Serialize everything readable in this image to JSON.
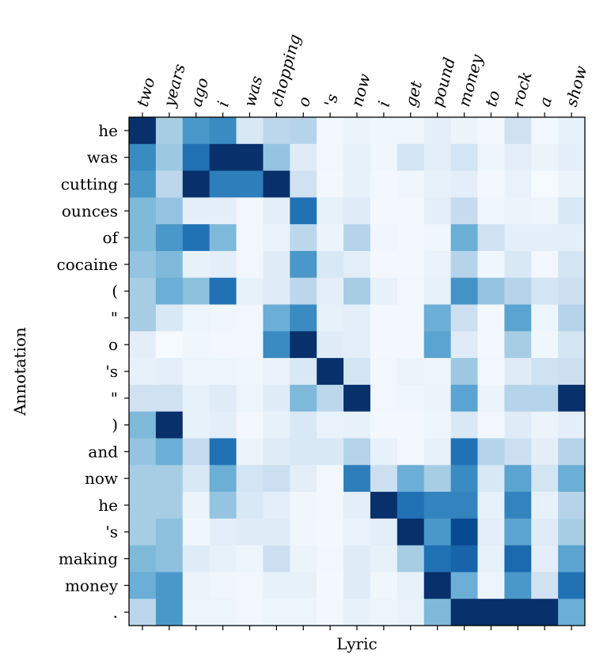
{
  "chart_data": {
    "type": "heatmap",
    "colormap": "Blues",
    "xlabel": "Lyric",
    "ylabel": "Annotation",
    "x_labels": [
      "two",
      "years",
      "ago",
      "i",
      "was",
      "chopping",
      "o",
      "'s",
      "now",
      "i",
      "get",
      "pound",
      "money",
      "to",
      "rock",
      "a",
      "show"
    ],
    "y_labels": [
      "he",
      "was",
      "cutting",
      "ounces",
      "of",
      "cocaine",
      "(",
      "\"",
      "o",
      "'s",
      "\"",
      ")",
      "and",
      "now",
      "he",
      "'s",
      "making",
      "money",
      "."
    ],
    "value_range": [
      0,
      1
    ],
    "values": [
      [
        1.0,
        0.35,
        0.6,
        0.65,
        0.15,
        0.28,
        0.3,
        0.03,
        0.06,
        0.04,
        0.04,
        0.1,
        0.06,
        0.02,
        0.2,
        0.03,
        0.08
      ],
      [
        0.65,
        0.38,
        0.75,
        1.0,
        1.0,
        0.4,
        0.12,
        0.03,
        0.08,
        0.04,
        0.18,
        0.1,
        0.18,
        0.05,
        0.1,
        0.06,
        0.1
      ],
      [
        0.6,
        0.28,
        1.0,
        0.7,
        0.7,
        1.0,
        0.2,
        0.02,
        0.08,
        0.02,
        0.04,
        0.08,
        0.1,
        0.02,
        0.07,
        0.01,
        0.06
      ],
      [
        0.45,
        0.4,
        0.1,
        0.1,
        0.03,
        0.1,
        0.75,
        0.08,
        0.12,
        0.02,
        0.02,
        0.1,
        0.25,
        0.04,
        0.06,
        0.05,
        0.15
      ],
      [
        0.45,
        0.6,
        0.75,
        0.45,
        0.03,
        0.07,
        0.28,
        0.06,
        0.3,
        0.04,
        0.02,
        0.04,
        0.5,
        0.2,
        0.1,
        0.1,
        0.1
      ],
      [
        0.4,
        0.45,
        0.08,
        0.1,
        0.03,
        0.12,
        0.6,
        0.15,
        0.1,
        0.02,
        0.02,
        0.07,
        0.3,
        0.04,
        0.15,
        0.03,
        0.18
      ],
      [
        0.35,
        0.5,
        0.42,
        0.75,
        0.08,
        0.12,
        0.28,
        0.1,
        0.35,
        0.08,
        0.03,
        0.08,
        0.62,
        0.4,
        0.3,
        0.18,
        0.22
      ],
      [
        0.35,
        0.15,
        0.05,
        0.04,
        0.03,
        0.5,
        0.65,
        0.08,
        0.1,
        0.02,
        0.02,
        0.5,
        0.22,
        0.02,
        0.55,
        0.05,
        0.3
      ],
      [
        0.1,
        0.01,
        0.04,
        0.03,
        0.03,
        0.65,
        1.0,
        0.12,
        0.1,
        0.02,
        0.02,
        0.55,
        0.12,
        0.02,
        0.35,
        0.04,
        0.18
      ],
      [
        0.08,
        0.1,
        0.05,
        0.05,
        0.04,
        0.07,
        0.15,
        1.0,
        0.18,
        0.03,
        0.06,
        0.05,
        0.38,
        0.03,
        0.12,
        0.2,
        0.22
      ],
      [
        0.2,
        0.2,
        0.08,
        0.12,
        0.05,
        0.12,
        0.45,
        0.28,
        1.0,
        0.03,
        0.04,
        0.06,
        0.55,
        0.06,
        0.3,
        0.3,
        1.0
      ],
      [
        0.45,
        1.0,
        0.08,
        0.1,
        0.02,
        0.08,
        0.15,
        0.07,
        0.08,
        0.02,
        0.02,
        0.05,
        0.15,
        0.03,
        0.12,
        0.06,
        0.1
      ],
      [
        0.4,
        0.5,
        0.25,
        0.75,
        0.06,
        0.12,
        0.15,
        0.15,
        0.3,
        0.08,
        0.03,
        0.08,
        0.75,
        0.3,
        0.22,
        0.1,
        0.3
      ],
      [
        0.35,
        0.35,
        0.15,
        0.5,
        0.18,
        0.22,
        0.1,
        0.03,
        0.7,
        0.22,
        0.5,
        0.35,
        0.65,
        0.15,
        0.55,
        0.18,
        0.5
      ],
      [
        0.35,
        0.35,
        0.06,
        0.4,
        0.15,
        0.1,
        0.04,
        0.03,
        0.1,
        1.0,
        0.75,
        0.68,
        0.68,
        0.08,
        0.68,
        0.08,
        0.3
      ],
      [
        0.35,
        0.42,
        0.04,
        0.1,
        0.12,
        0.12,
        0.04,
        0.02,
        0.07,
        0.1,
        1.0,
        0.6,
        0.9,
        0.1,
        0.55,
        0.12,
        0.35
      ],
      [
        0.45,
        0.42,
        0.12,
        0.08,
        0.05,
        0.22,
        0.06,
        0.03,
        0.12,
        0.08,
        0.35,
        0.75,
        0.8,
        0.08,
        0.78,
        0.1,
        0.55
      ],
      [
        0.5,
        0.6,
        0.06,
        0.04,
        0.03,
        0.08,
        0.08,
        0.02,
        0.12,
        0.04,
        0.08,
        1.0,
        0.5,
        0.05,
        0.6,
        0.2,
        0.75
      ],
      [
        0.28,
        0.6,
        0.05,
        0.05,
        0.03,
        0.05,
        0.05,
        0.02,
        0.08,
        0.05,
        0.07,
        0.45,
        1.0,
        1.0,
        1.0,
        1.0,
        0.5
      ]
    ]
  }
}
